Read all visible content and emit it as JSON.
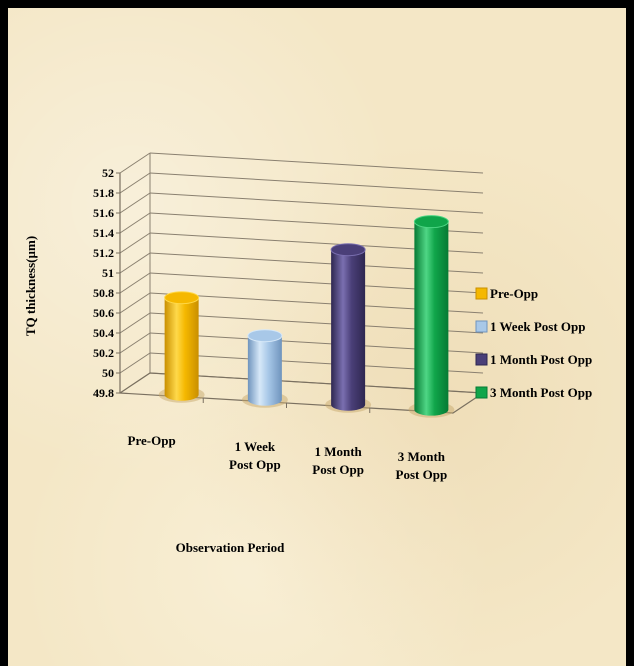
{
  "chart_data": {
    "type": "bar",
    "title": "",
    "xlabel": "Observation Period",
    "ylabel": "TQ thickness(µm)",
    "ylim": [
      49.8,
      52
    ],
    "yticks": [
      "49.8",
      "50",
      "50.2",
      "50.4",
      "50.6",
      "50.8",
      "51",
      "51.2",
      "51.4",
      "51.6",
      "51.8",
      "52"
    ],
    "categories": [
      [
        "Pre-Opp"
      ],
      [
        "1 Week",
        "Post Opp"
      ],
      [
        "1 Month",
        "Post Opp"
      ],
      [
        "3 Month",
        "Post Opp"
      ]
    ],
    "values": [
      50.77,
      50.44,
      51.35,
      51.68
    ],
    "legend_placement": "right",
    "legend": [
      "Pre-Opp",
      "1 Week Post Opp",
      "1 Month Post Opp",
      "3 Month Post Opp"
    ],
    "colors": [
      "#f5b800",
      "#a8c8e8",
      "#4a3f78",
      "#10a54a"
    ],
    "grid": true
  }
}
